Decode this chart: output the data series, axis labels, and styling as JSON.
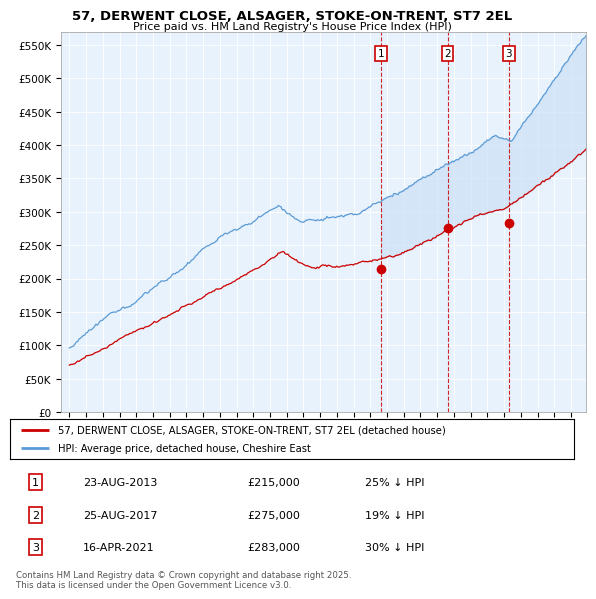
{
  "title_line1": "57, DERWENT CLOSE, ALSAGER, STOKE-ON-TRENT, ST7 2EL",
  "title_line2": "Price paid vs. HM Land Registry's House Price Index (HPI)",
  "ylim": [
    0,
    570000
  ],
  "yticks": [
    0,
    50000,
    100000,
    150000,
    200000,
    250000,
    300000,
    350000,
    400000,
    450000,
    500000,
    550000
  ],
  "ytick_labels": [
    "£0",
    "£50K",
    "£100K",
    "£150K",
    "£200K",
    "£250K",
    "£300K",
    "£350K",
    "£400K",
    "£450K",
    "£500K",
    "£550K"
  ],
  "hpi_color": "#5b9bd5",
  "price_color": "#cc0000",
  "vline_color": "#cc0000",
  "fill_color": "#cce0f5",
  "background_color": "#ddeeff",
  "plot_bg": "#e8f2fc",
  "transactions": [
    {
      "num": 1,
      "date_str": "23-AUG-2013",
      "date_x": 2013.64,
      "price": 215000,
      "pct": "25% ↓ HPI"
    },
    {
      "num": 2,
      "date_str": "25-AUG-2017",
      "date_x": 2017.64,
      "price": 275000,
      "pct": "19% ↓ HPI"
    },
    {
      "num": 3,
      "date_str": "16-APR-2021",
      "date_x": 2021.29,
      "price": 283000,
      "pct": "30% ↓ HPI"
    }
  ],
  "legend_line1": "57, DERWENT CLOSE, ALSAGER, STOKE-ON-TRENT, ST7 2EL (detached house)",
  "legend_line2": "HPI: Average price, detached house, Cheshire East",
  "footnote": "Contains HM Land Registry data © Crown copyright and database right 2025.\nThis data is licensed under the Open Government Licence v3.0.",
  "xlim_left": 1994.5,
  "xlim_right": 2025.9
}
